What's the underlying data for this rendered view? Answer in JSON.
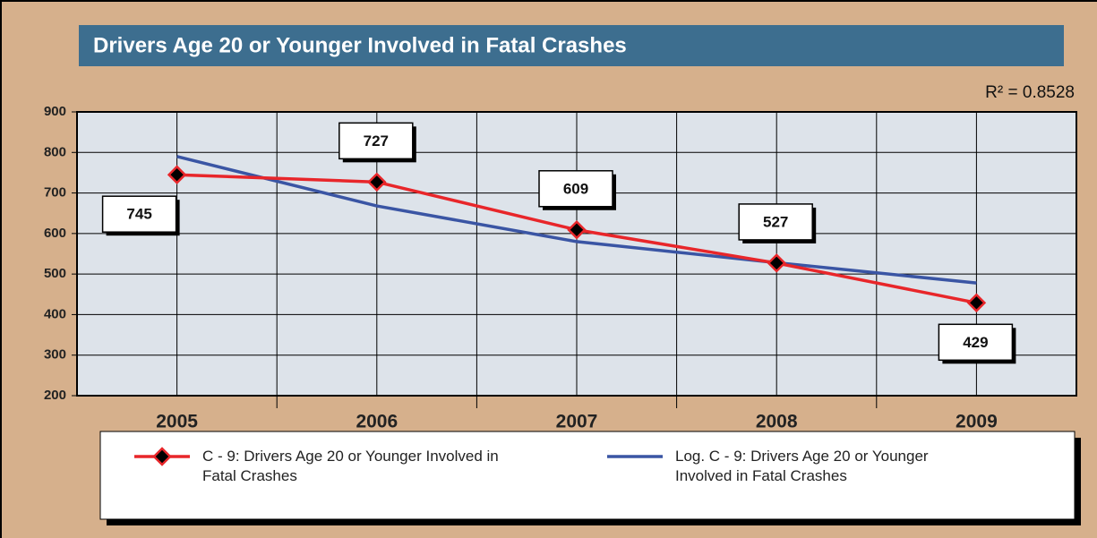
{
  "chart_data": {
    "type": "line",
    "title": "Drivers Age 20 or Younger Involved in Fatal Crashes",
    "annotation": "R² = 0.8528",
    "categories": [
      "2005",
      "2006",
      "2007",
      "2008",
      "2009"
    ],
    "series": [
      {
        "name": "C - 9: Drivers Age 20 or Younger Involved in Fatal Crashes",
        "color": "#e8262a",
        "marker": "diamond",
        "data_labels": true,
        "values": [
          745,
          727,
          609,
          527,
          429
        ]
      },
      {
        "name": "Log. C - 9: Drivers Age 20 or Younger Involved in Fatal Crashes",
        "color": "#3a55a4",
        "values": [
          790,
          668,
          580,
          528,
          478
        ]
      }
    ],
    "ylim": [
      200,
      900
    ],
    "yticks": [
      200,
      300,
      400,
      500,
      600,
      700,
      800,
      900
    ],
    "grid": true
  }
}
